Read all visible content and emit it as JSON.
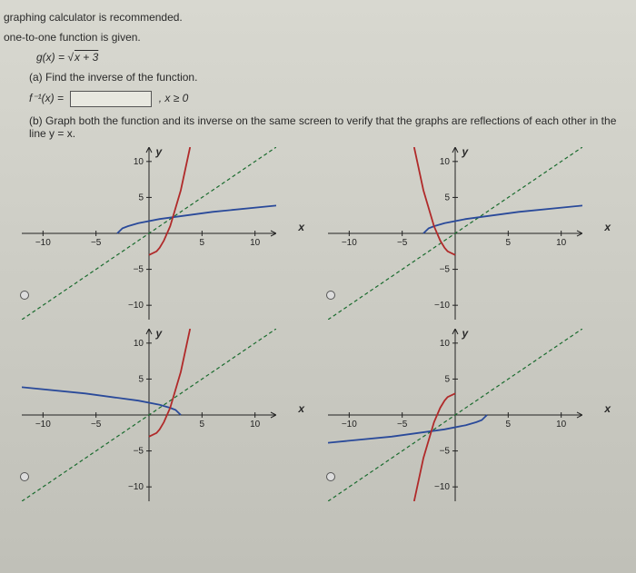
{
  "intro": {
    "rec": "graphing calculator is recommended.",
    "given": "one-to-one function is given.",
    "gx_lhs": "g(x) = ",
    "gx_radicand": "x + 3",
    "part_a": "(a) Find the inverse of the function.",
    "finv_lhs": "f⁻¹(x) =",
    "domain_cond": ",   x ≥ 0",
    "part_b": "(b) Graph both the function and its inverse on the same screen to verify that the graphs are reflections of each other in the line  y = x."
  },
  "axes": {
    "xlabel": "x",
    "ylabel": "y",
    "xlim": [
      -12,
      12
    ],
    "ylim": [
      -12,
      12
    ],
    "xticks": [
      -10,
      -5,
      5,
      10
    ],
    "yticks": [
      -10,
      -5,
      5,
      10
    ],
    "identity_color": "#1a6b2e",
    "f_color": "#2a4a9a",
    "inv_color": "#b02a2a"
  },
  "options": [
    {
      "f_pts": [
        [
          -3,
          0
        ],
        [
          -2.5,
          0.71
        ],
        [
          -2,
          1
        ],
        [
          -1,
          1.41
        ],
        [
          1,
          2
        ],
        [
          6,
          3
        ],
        [
          12,
          3.87
        ]
      ],
      "inv_pts": [
        [
          0,
          -3
        ],
        [
          0.71,
          -2.5
        ],
        [
          1,
          -2
        ],
        [
          1.41,
          -1
        ],
        [
          2,
          1
        ],
        [
          3,
          6
        ],
        [
          3.87,
          12
        ]
      ]
    },
    {
      "f_pts": [
        [
          -3,
          0
        ],
        [
          -2.5,
          0.71
        ],
        [
          -2,
          1
        ],
        [
          -1,
          1.41
        ],
        [
          1,
          2
        ],
        [
          6,
          3
        ],
        [
          12,
          3.87
        ]
      ],
      "inv_pts": [
        [
          -3.87,
          12
        ],
        [
          -3,
          6
        ],
        [
          -2,
          1
        ],
        [
          -1.41,
          -1
        ],
        [
          -1,
          -2
        ],
        [
          -0.71,
          -2.5
        ],
        [
          0,
          -3
        ]
      ]
    },
    {
      "f_pts": [
        [
          -12,
          3.87
        ],
        [
          -6,
          3
        ],
        [
          -1,
          2
        ],
        [
          1,
          1.41
        ],
        [
          2,
          1
        ],
        [
          2.5,
          0.71
        ],
        [
          3,
          0
        ]
      ],
      "inv_pts": [
        [
          0,
          -3
        ],
        [
          0.71,
          -2.5
        ],
        [
          1,
          -2
        ],
        [
          1.41,
          -1
        ],
        [
          2,
          1
        ],
        [
          3,
          6
        ],
        [
          3.87,
          12
        ]
      ]
    },
    {
      "f_pts": [
        [
          -12,
          -3.87
        ],
        [
          -6,
          -3
        ],
        [
          -1,
          -2
        ],
        [
          1,
          -1.41
        ],
        [
          2,
          -1
        ],
        [
          2.5,
          -0.71
        ],
        [
          3,
          0
        ]
      ],
      "inv_pts": [
        [
          0,
          3
        ],
        [
          -0.71,
          2.5
        ],
        [
          -1,
          2
        ],
        [
          -1.41,
          1
        ],
        [
          -2,
          -1
        ],
        [
          -3,
          -6
        ],
        [
          -3.87,
          -12
        ]
      ]
    }
  ]
}
